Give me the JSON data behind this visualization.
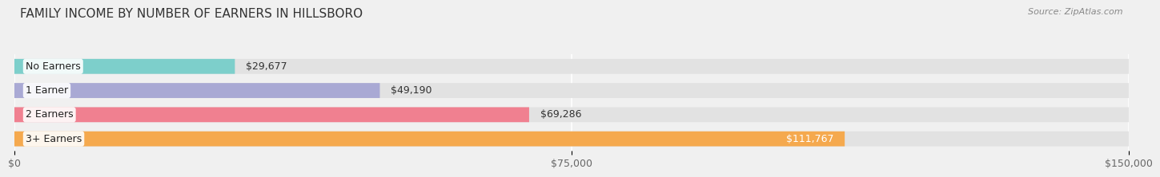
{
  "title": "FAMILY INCOME BY NUMBER OF EARNERS IN HILLSBORO",
  "source": "Source: ZipAtlas.com",
  "categories": [
    "No Earners",
    "1 Earner",
    "2 Earners",
    "3+ Earners"
  ],
  "values": [
    29677,
    49190,
    69286,
    111767
  ],
  "bar_colors": [
    "#7dcfcb",
    "#a9a9d4",
    "#f08090",
    "#f5a94e"
  ],
  "label_colors": [
    "#333333",
    "#333333",
    "#333333",
    "#ffffff"
  ],
  "xlim": [
    0,
    150000
  ],
  "xticks": [
    0,
    75000,
    150000
  ],
  "xtick_labels": [
    "$0",
    "$75,000",
    "$150,000"
  ],
  "background_color": "#f0f0f0",
  "bar_background_color": "#e2e2e2",
  "title_fontsize": 11,
  "label_fontsize": 9,
  "tick_fontsize": 9,
  "source_fontsize": 8
}
